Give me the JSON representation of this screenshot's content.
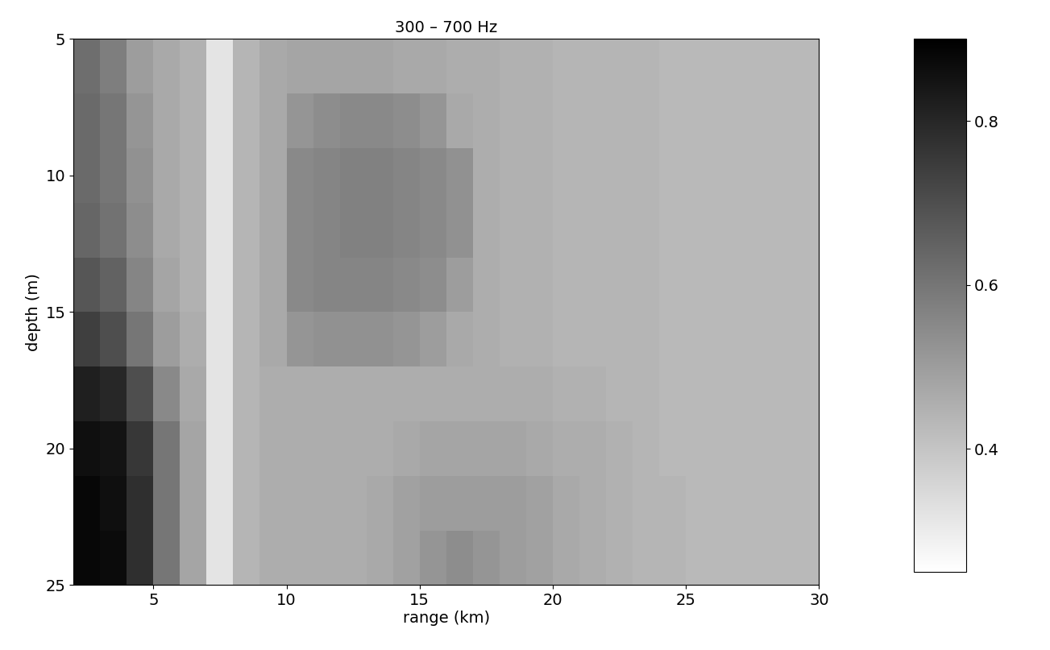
{
  "chart_data": {
    "type": "heatmap",
    "title": "300 – 700 Hz",
    "x_label": "range (km)",
    "y_label": "depth (m)",
    "xlim": [
      2,
      30
    ],
    "ylim": [
      25,
      5
    ],
    "xticks": [
      5,
      10,
      15,
      20,
      25,
      30
    ],
    "yticks": [
      5,
      10,
      15,
      20,
      25
    ],
    "x_edges": [
      2,
      3,
      4,
      5,
      6,
      7,
      8,
      9,
      10,
      11,
      12,
      13,
      14,
      15,
      16,
      17,
      18,
      19,
      20,
      21,
      22,
      23,
      24,
      25,
      26,
      27,
      28,
      29,
      30
    ],
    "y_edges": [
      5,
      7,
      9,
      11,
      13,
      15,
      17,
      19,
      21,
      23,
      25
    ],
    "cells": [
      [
        0.62,
        0.58,
        0.5,
        0.47,
        0.45,
        0.32,
        0.44,
        0.47,
        0.48,
        0.48,
        0.48,
        0.48,
        0.47,
        0.47,
        0.46,
        0.46,
        0.45,
        0.45,
        0.44,
        0.44,
        0.44,
        0.44,
        0.43,
        0.43,
        0.43,
        0.43,
        0.43,
        0.43
      ],
      [
        0.63,
        0.6,
        0.52,
        0.47,
        0.45,
        0.32,
        0.44,
        0.47,
        0.52,
        0.54,
        0.55,
        0.55,
        0.54,
        0.52,
        0.47,
        0.46,
        0.45,
        0.45,
        0.44,
        0.44,
        0.44,
        0.44,
        0.43,
        0.43,
        0.43,
        0.43,
        0.43,
        0.43
      ],
      [
        0.63,
        0.6,
        0.53,
        0.47,
        0.45,
        0.32,
        0.44,
        0.47,
        0.55,
        0.56,
        0.57,
        0.57,
        0.56,
        0.55,
        0.53,
        0.46,
        0.45,
        0.45,
        0.44,
        0.44,
        0.44,
        0.44,
        0.43,
        0.43,
        0.43,
        0.43,
        0.43,
        0.43
      ],
      [
        0.64,
        0.61,
        0.54,
        0.47,
        0.45,
        0.32,
        0.44,
        0.47,
        0.55,
        0.56,
        0.57,
        0.57,
        0.56,
        0.55,
        0.53,
        0.46,
        0.45,
        0.45,
        0.44,
        0.44,
        0.44,
        0.44,
        0.43,
        0.43,
        0.43,
        0.43,
        0.43,
        0.43
      ],
      [
        0.68,
        0.65,
        0.56,
        0.48,
        0.45,
        0.32,
        0.44,
        0.47,
        0.55,
        0.56,
        0.56,
        0.56,
        0.55,
        0.54,
        0.5,
        0.46,
        0.45,
        0.45,
        0.44,
        0.44,
        0.44,
        0.44,
        0.43,
        0.43,
        0.43,
        0.43,
        0.43,
        0.43
      ],
      [
        0.74,
        0.7,
        0.6,
        0.5,
        0.46,
        0.32,
        0.44,
        0.47,
        0.52,
        0.53,
        0.53,
        0.53,
        0.52,
        0.5,
        0.47,
        0.46,
        0.45,
        0.45,
        0.44,
        0.44,
        0.44,
        0.44,
        0.43,
        0.43,
        0.43,
        0.43,
        0.43,
        0.43
      ],
      [
        0.82,
        0.8,
        0.7,
        0.55,
        0.47,
        0.32,
        0.44,
        0.46,
        0.46,
        0.46,
        0.46,
        0.46,
        0.46,
        0.46,
        0.46,
        0.46,
        0.46,
        0.46,
        0.45,
        0.45,
        0.44,
        0.44,
        0.43,
        0.43,
        0.43,
        0.43,
        0.43,
        0.43
      ],
      [
        0.86,
        0.85,
        0.76,
        0.6,
        0.48,
        0.32,
        0.44,
        0.46,
        0.46,
        0.46,
        0.46,
        0.46,
        0.47,
        0.48,
        0.48,
        0.48,
        0.48,
        0.47,
        0.46,
        0.46,
        0.45,
        0.44,
        0.43,
        0.43,
        0.43,
        0.43,
        0.43,
        0.43
      ],
      [
        0.88,
        0.86,
        0.78,
        0.6,
        0.48,
        0.32,
        0.44,
        0.46,
        0.46,
        0.46,
        0.46,
        0.47,
        0.49,
        0.5,
        0.5,
        0.5,
        0.5,
        0.49,
        0.47,
        0.46,
        0.45,
        0.44,
        0.44,
        0.43,
        0.43,
        0.43,
        0.43,
        0.43
      ],
      [
        0.88,
        0.87,
        0.78,
        0.6,
        0.48,
        0.32,
        0.44,
        0.46,
        0.46,
        0.46,
        0.46,
        0.47,
        0.49,
        0.52,
        0.54,
        0.52,
        0.5,
        0.49,
        0.47,
        0.46,
        0.45,
        0.44,
        0.44,
        0.43,
        0.43,
        0.43,
        0.43,
        0.43
      ]
    ],
    "colorbar_range": [
      0.25,
      0.9
    ],
    "colorbar_ticks": [
      0.4,
      0.6,
      0.8
    ]
  }
}
